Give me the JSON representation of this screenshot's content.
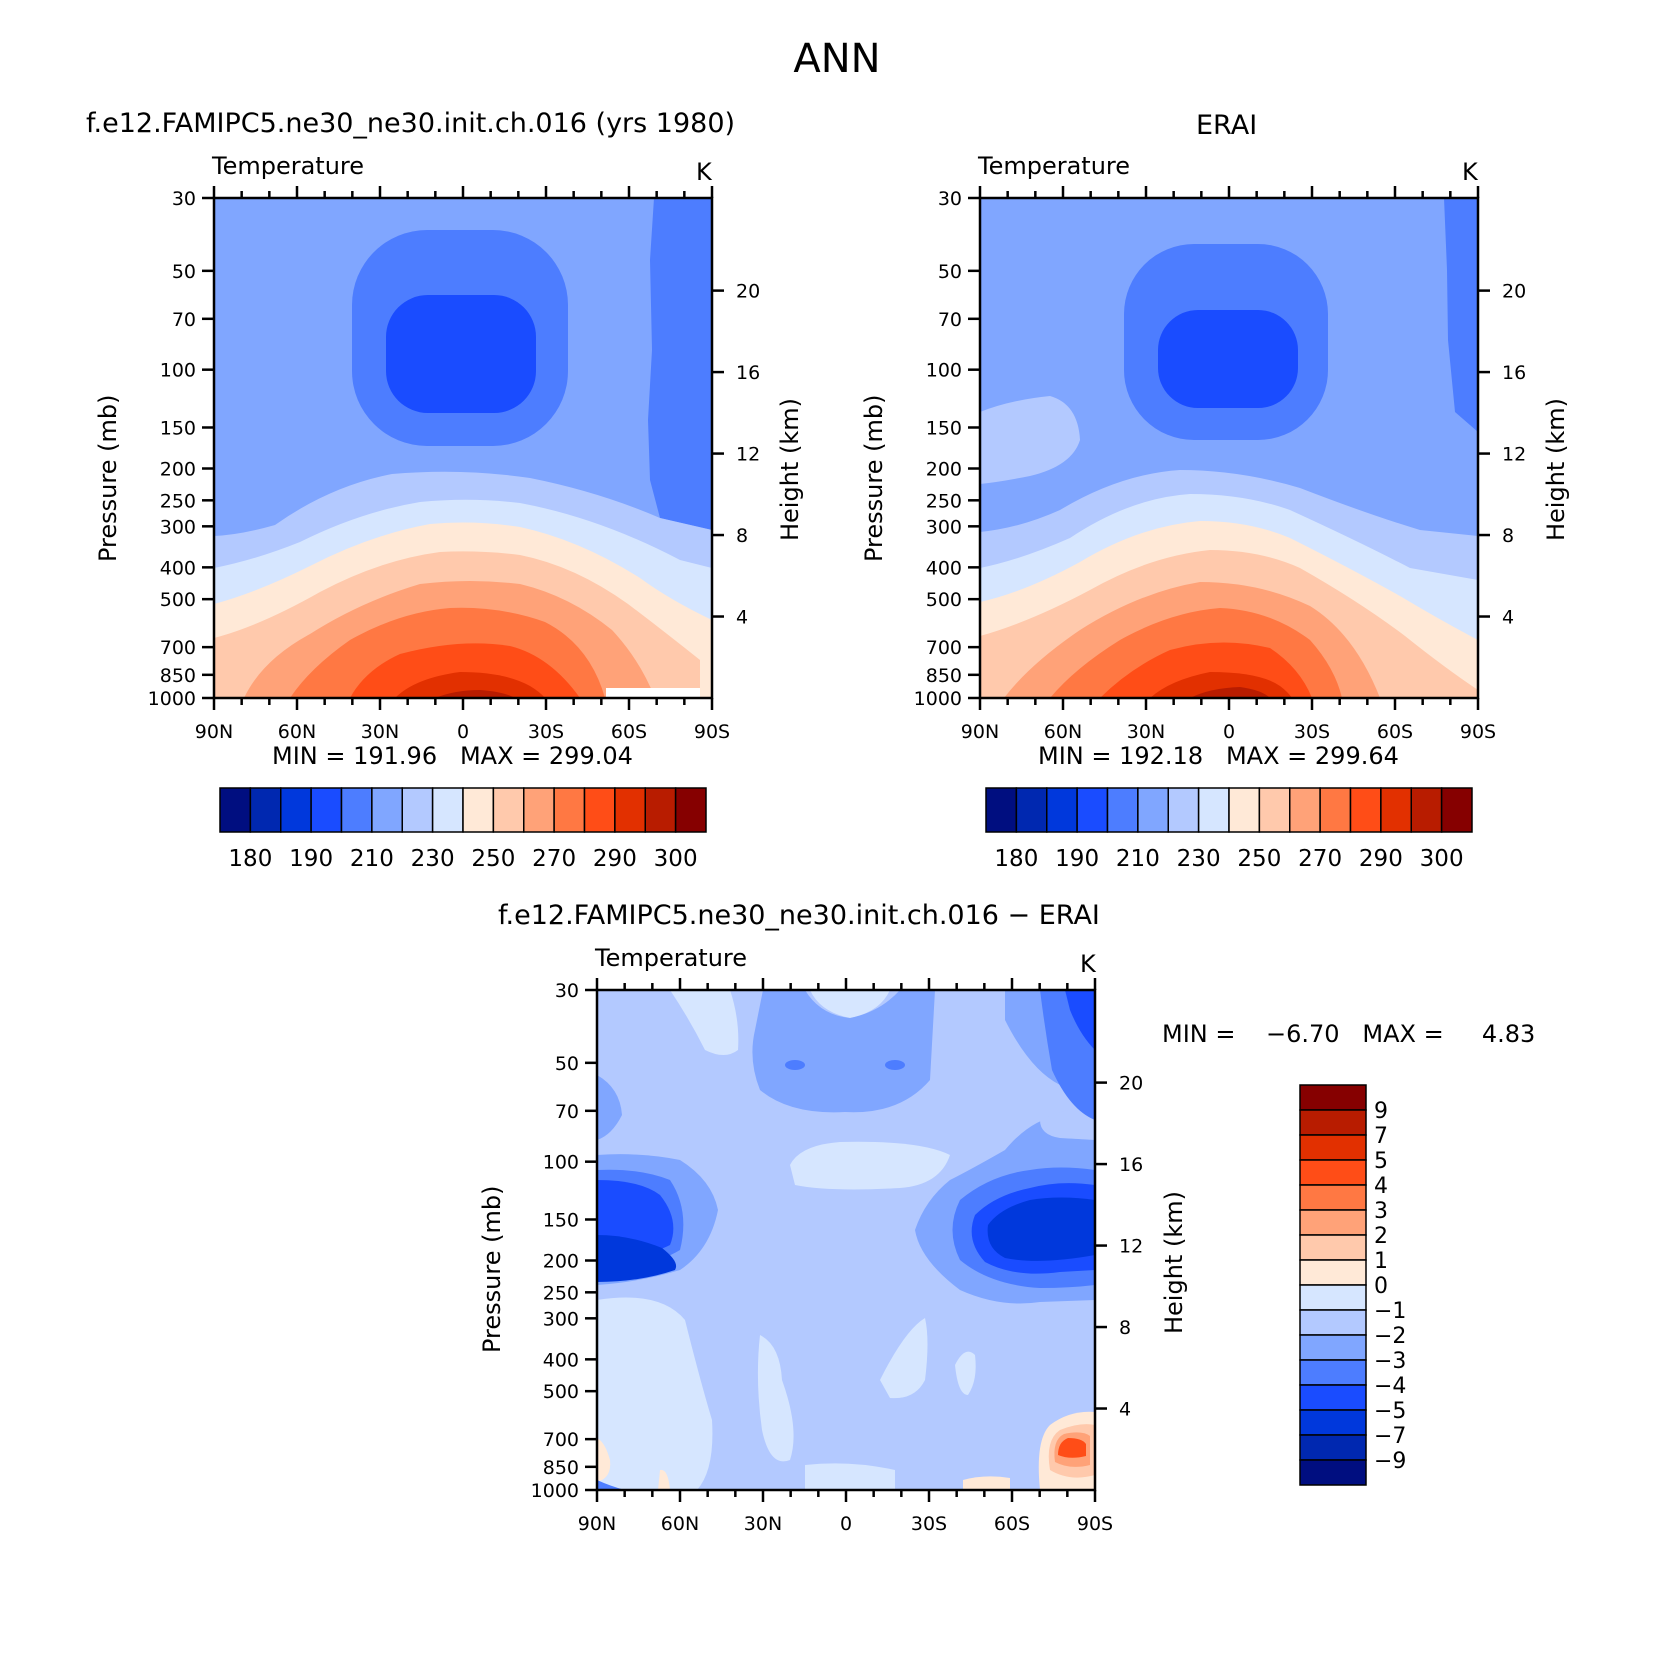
{
  "figure": {
    "title": "ANN"
  },
  "panels": [
    {
      "id": "model",
      "title": "f.e12.FAMIPC5.ne30_ne30.init.ch.016 (yrs 1980)",
      "variable": "Temperature",
      "units": "K",
      "ylabel": "Pressure (mb)",
      "ylabel_right": "Height (km)",
      "stats": "MIN = 191.96   MAX = 299.04"
    },
    {
      "id": "obs",
      "title": "ERAI",
      "variable": "Temperature",
      "units": "K",
      "ylabel": "Pressure (mb)",
      "ylabel_right": "Height (km)",
      "stats": "MIN = 192.18   MAX = 299.64"
    },
    {
      "id": "diff",
      "title": "f.e12.FAMIPC5.ne30_ne30.init.ch.016 − ERAI",
      "variable": "Temperature",
      "units": "K",
      "ylabel": "Pressure (mb)",
      "ylabel_right": "Height (km)",
      "stats": "MIN =    −6.70   MAX =     4.83"
    }
  ],
  "chart_data": [
    {
      "type": "heatmap",
      "title": "f.e12.FAMIPC5.ne30_ne30.init.ch.016 (yrs 1980)",
      "subtitle": "Temperature",
      "units": "K",
      "x": {
        "ticks": [
          "90N",
          "60N",
          "30N",
          "0",
          "30S",
          "60S",
          "90S"
        ],
        "range": [
          90,
          -90
        ]
      },
      "y": {
        "label": "Pressure (mb)",
        "ticks": [
          30,
          50,
          70,
          100,
          150,
          200,
          250,
          300,
          400,
          500,
          700,
          850,
          1000
        ],
        "range": [
          30,
          1000
        ],
        "scale": "log"
      },
      "y2": {
        "label": "Height (km)",
        "ticks": [
          20,
          16,
          12,
          8,
          4
        ]
      },
      "stats": {
        "min": 191.96,
        "max": 299.04
      },
      "contour_levels": [
        180,
        185,
        190,
        200,
        210,
        220,
        230,
        240,
        250,
        260,
        270,
        280,
        290,
        295,
        300
      ],
      "colorbar_labels": [
        "180",
        "190",
        "210",
        "230",
        "250",
        "270",
        "290",
        "300"
      ]
    },
    {
      "type": "heatmap",
      "title": "ERAI",
      "subtitle": "Temperature",
      "units": "K",
      "x": {
        "ticks": [
          "90N",
          "60N",
          "30N",
          "0",
          "30S",
          "60S",
          "90S"
        ],
        "range": [
          90,
          -90
        ]
      },
      "y": {
        "label": "Pressure (mb)",
        "ticks": [
          30,
          50,
          70,
          100,
          150,
          200,
          250,
          300,
          400,
          500,
          700,
          850,
          1000
        ],
        "range": [
          30,
          1000
        ],
        "scale": "log"
      },
      "y2": {
        "label": "Height (km)",
        "ticks": [
          20,
          16,
          12,
          8,
          4
        ]
      },
      "stats": {
        "min": 192.18,
        "max": 299.64
      },
      "contour_levels": [
        180,
        185,
        190,
        200,
        210,
        220,
        230,
        240,
        250,
        260,
        270,
        280,
        290,
        295,
        300
      ],
      "colorbar_labels": [
        "180",
        "190",
        "210",
        "230",
        "250",
        "270",
        "290",
        "300"
      ]
    },
    {
      "type": "heatmap",
      "title": "f.e12.FAMIPC5.ne30_ne30.init.ch.016 − ERAI",
      "subtitle": "Temperature",
      "units": "K",
      "x": {
        "ticks": [
          "90N",
          "60N",
          "30N",
          "0",
          "30S",
          "60S",
          "90S"
        ],
        "range": [
          90,
          -90
        ]
      },
      "y": {
        "label": "Pressure (mb)",
        "ticks": [
          30,
          50,
          70,
          100,
          150,
          200,
          250,
          300,
          400,
          500,
          700,
          850,
          1000
        ],
        "range": [
          30,
          1000
        ],
        "scale": "log"
      },
      "y2": {
        "label": "Height (km)",
        "ticks": [
          20,
          16,
          12,
          8,
          4
        ]
      },
      "stats": {
        "min": -6.7,
        "max": 4.83
      },
      "contour_levels": [
        -9,
        -7,
        -5,
        -4,
        -3,
        -2,
        -1,
        0,
        1,
        2,
        3,
        4,
        5,
        7,
        9
      ],
      "colorbar_labels": [
        "9",
        "7",
        "5",
        "4",
        "3",
        "2",
        "1",
        "0",
        "−1",
        "−2",
        "−3",
        "−4",
        "−5",
        "−7",
        "−9"
      ]
    }
  ],
  "palettes": {
    "absolute": [
      "#000e80",
      "#0028b0",
      "#0038dc",
      "#1a4cff",
      "#4d7dff",
      "#80a6ff",
      "#b3c9ff",
      "#d6e6ff",
      "#ffe9d7",
      "#ffc9ac",
      "#ffa278",
      "#ff7843",
      "#ff4d17",
      "#e23000",
      "#b81c00",
      "#860000"
    ],
    "difference": [
      "#860000",
      "#b81c00",
      "#e23000",
      "#ff4d17",
      "#ff7843",
      "#ffa278",
      "#ffc9ac",
      "#ffe9d7",
      "#d6e6ff",
      "#b3c9ff",
      "#80a6ff",
      "#4d7dff",
      "#1a4cff",
      "#0038dc",
      "#0028b0",
      "#000e80"
    ]
  }
}
